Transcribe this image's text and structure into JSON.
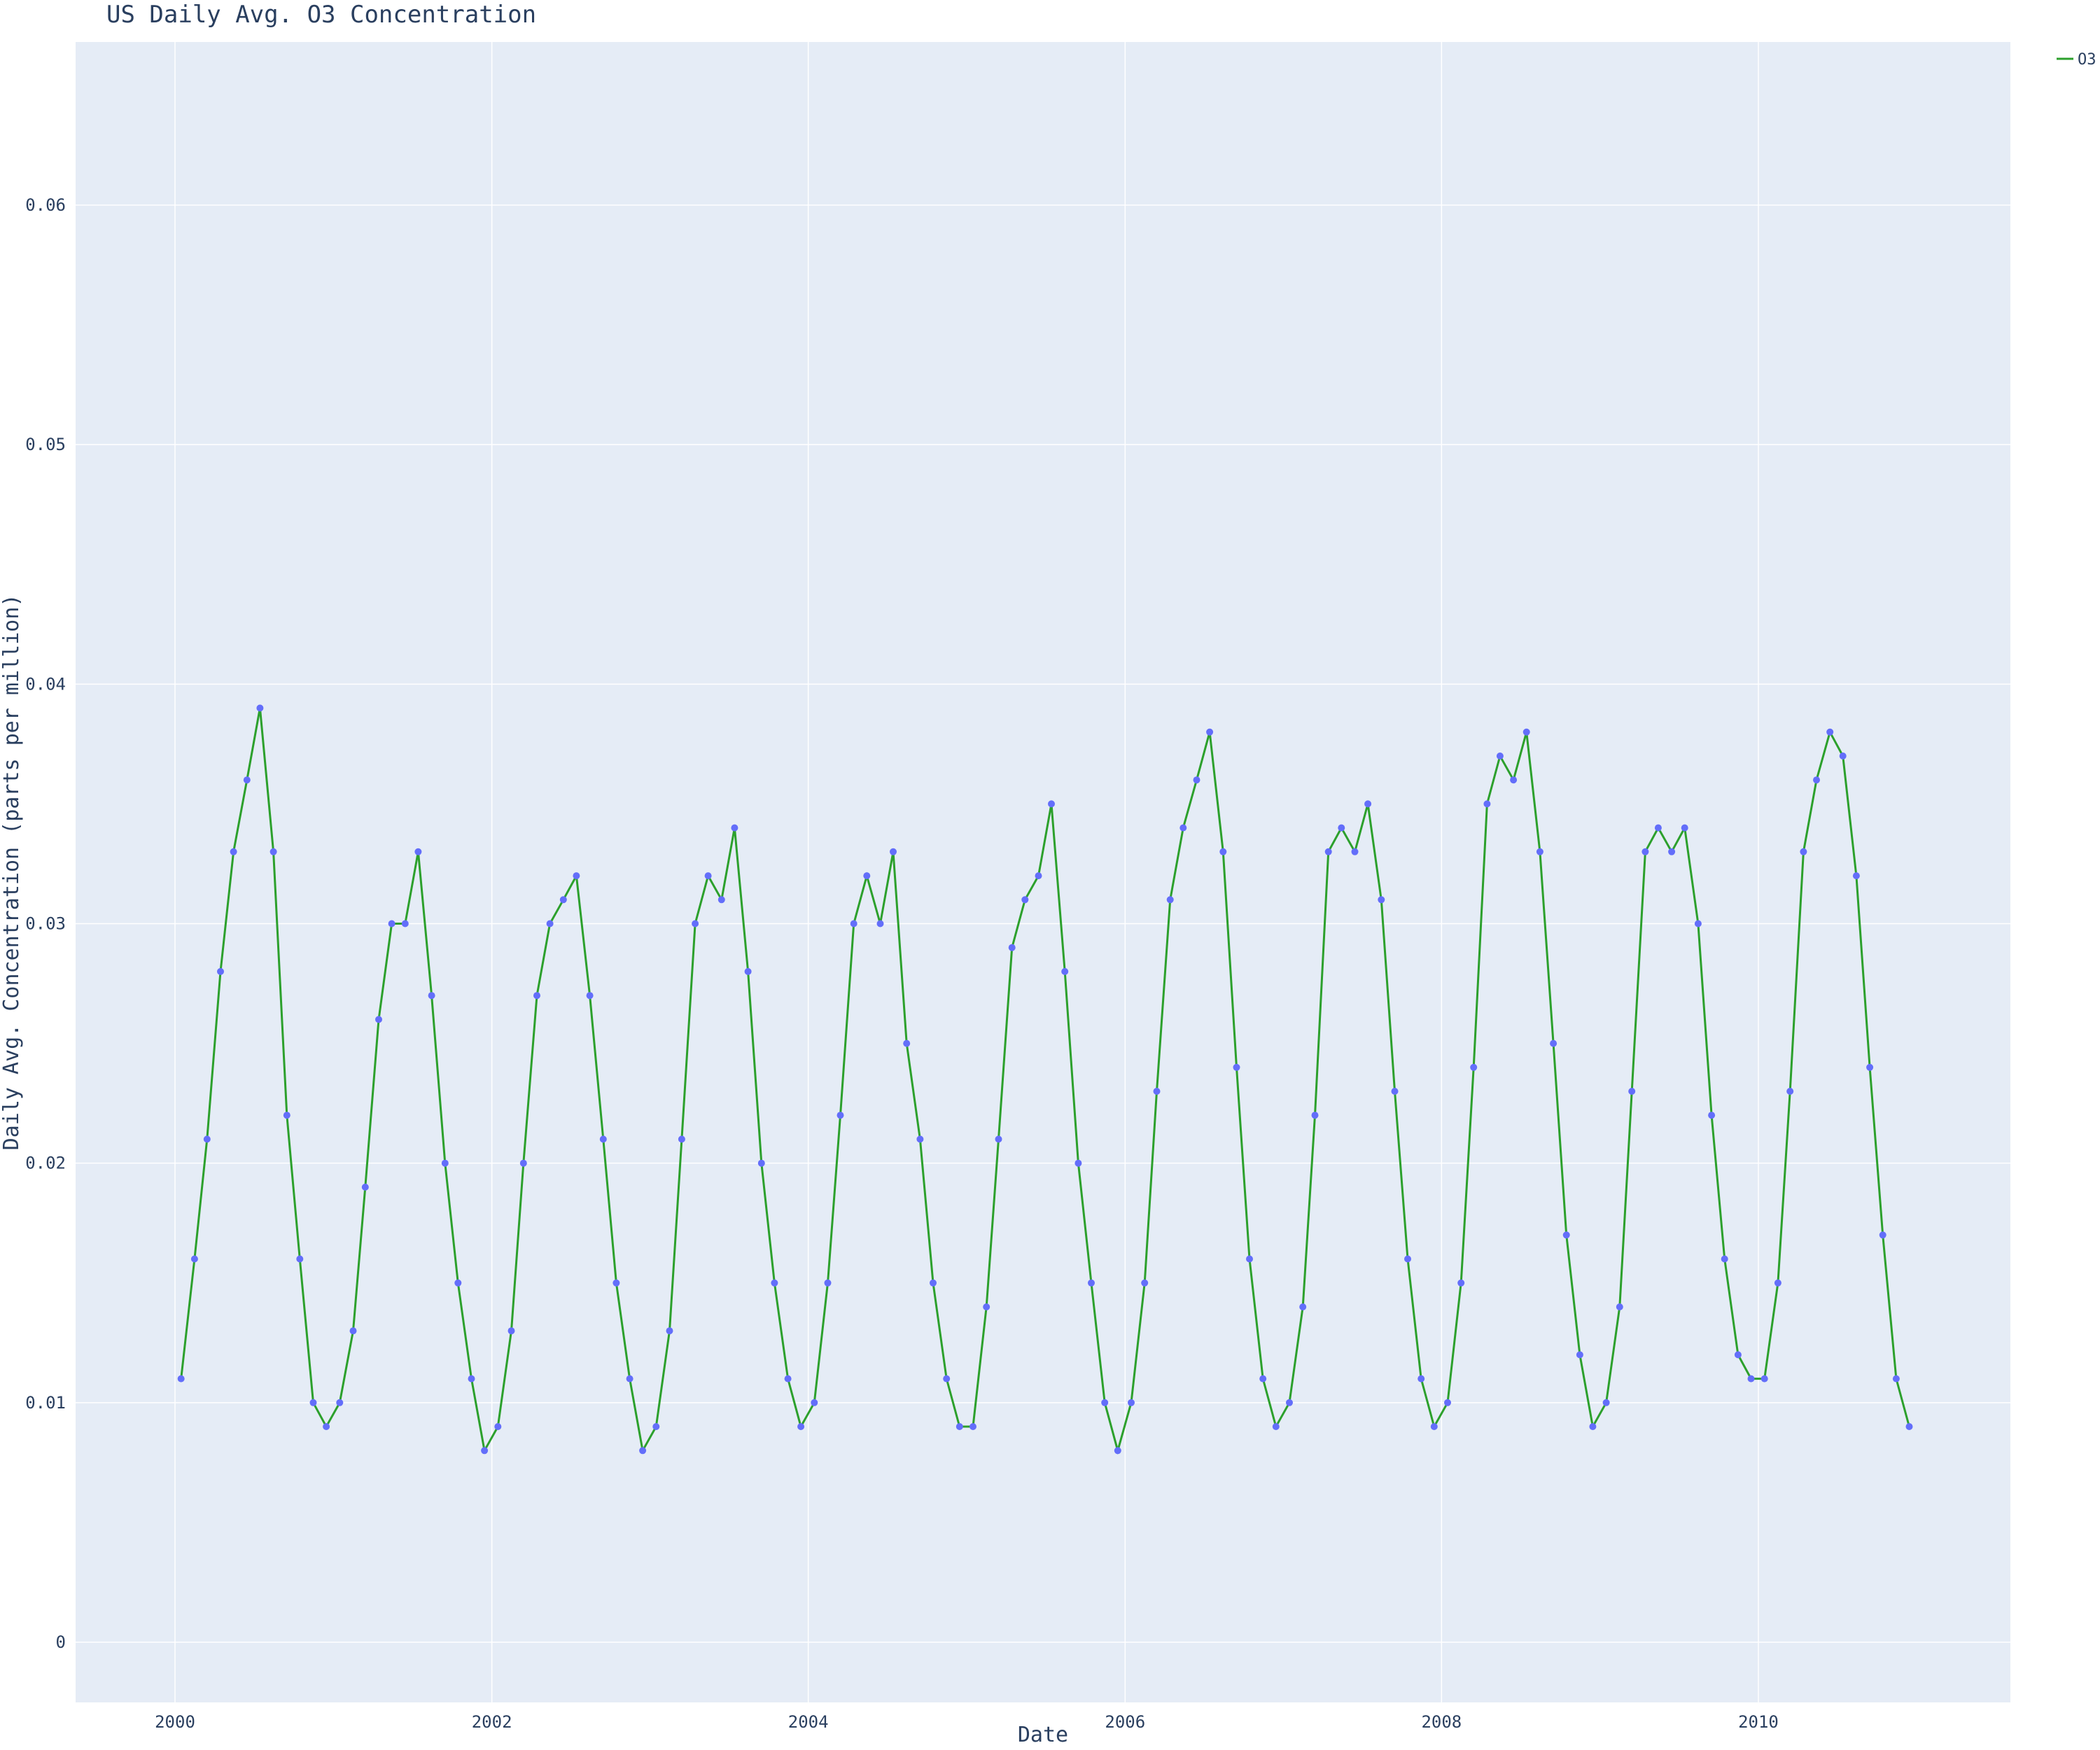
{
  "chart_data": {
    "type": "line",
    "mode": "lines+markers",
    "title": "US Daily Avg. O3 Concentration",
    "xlabel": "Date",
    "ylabel": "Daily Avg. Concentration (parts per million)",
    "x_range": [
      "2000-01-01",
      "2011-01-01"
    ],
    "ylim": [
      0,
      0.065
    ],
    "x_ticks": [
      "2000",
      "2002",
      "2004",
      "2006",
      "2008",
      "2010"
    ],
    "y_ticks": [
      "0",
      "0.01",
      "0.02",
      "0.03",
      "0.04",
      "0.05",
      "0.06"
    ],
    "grid": true,
    "legend_position": "top-right",
    "series": [
      {
        "name": "O3",
        "line_color": "#2ca02c",
        "marker_color": "#636efa",
        "x": [
          "2000-01-15",
          "2000-02-15",
          "2000-03-15",
          "2000-04-15",
          "2000-05-15",
          "2000-06-15",
          "2000-07-15",
          "2000-08-15",
          "2000-09-15",
          "2000-10-15",
          "2000-11-15",
          "2000-12-15",
          "2001-01-15",
          "2001-02-15",
          "2001-03-15",
          "2001-04-15",
          "2001-05-15",
          "2001-06-15",
          "2001-07-15",
          "2001-08-15",
          "2001-09-15",
          "2001-10-15",
          "2001-11-15",
          "2001-12-15",
          "2002-01-15",
          "2002-02-15",
          "2002-03-15",
          "2002-04-15",
          "2002-05-15",
          "2002-06-15",
          "2002-07-15",
          "2002-08-15",
          "2002-09-15",
          "2002-10-15",
          "2002-11-15",
          "2002-12-15",
          "2003-01-15",
          "2003-02-15",
          "2003-03-15",
          "2003-04-15",
          "2003-05-15",
          "2003-06-15",
          "2003-07-15",
          "2003-08-15",
          "2003-09-15",
          "2003-10-15",
          "2003-11-15",
          "2003-12-15",
          "2004-01-15",
          "2004-02-15",
          "2004-03-15",
          "2004-04-15",
          "2004-05-15",
          "2004-06-15",
          "2004-07-15",
          "2004-08-15",
          "2004-09-15",
          "2004-10-15",
          "2004-11-15",
          "2004-12-15",
          "2005-01-15",
          "2005-02-15",
          "2005-03-15",
          "2005-04-15",
          "2005-05-15",
          "2005-06-15",
          "2005-07-15",
          "2005-08-15",
          "2005-09-15",
          "2005-10-15",
          "2005-11-15",
          "2005-12-15",
          "2006-01-15",
          "2006-02-15",
          "2006-03-15",
          "2006-04-15",
          "2006-05-15",
          "2006-06-15",
          "2006-07-15",
          "2006-08-15",
          "2006-09-15",
          "2006-10-15",
          "2006-11-15",
          "2006-12-15",
          "2007-01-15",
          "2007-02-15",
          "2007-03-15",
          "2007-04-15",
          "2007-05-15",
          "2007-06-15",
          "2007-07-15",
          "2007-08-15",
          "2007-09-15",
          "2007-10-15",
          "2007-11-15",
          "2007-12-15",
          "2008-01-15",
          "2008-02-15",
          "2008-03-15",
          "2008-04-15",
          "2008-05-15",
          "2008-06-15",
          "2008-07-15",
          "2008-08-15",
          "2008-09-15",
          "2008-10-15",
          "2008-11-15",
          "2008-12-15",
          "2009-01-15",
          "2009-02-15",
          "2009-03-15",
          "2009-04-15",
          "2009-05-15",
          "2009-06-15",
          "2009-07-15",
          "2009-08-15",
          "2009-09-15",
          "2009-10-15",
          "2009-11-15",
          "2009-12-15",
          "2010-01-15",
          "2010-02-15",
          "2010-03-15",
          "2010-04-15",
          "2010-05-15",
          "2010-06-15",
          "2010-07-15",
          "2010-08-15",
          "2010-09-15",
          "2010-10-15",
          "2010-11-15",
          "2010-12-15"
        ],
        "y": [
          0.011,
          0.016,
          0.021,
          0.028,
          0.033,
          0.036,
          0.039,
          0.033,
          0.022,
          0.016,
          0.01,
          0.009,
          0.01,
          0.013,
          0.019,
          0.026,
          0.03,
          0.03,
          0.033,
          0.027,
          0.02,
          0.015,
          0.011,
          0.008,
          0.009,
          0.013,
          0.02,
          0.027,
          0.03,
          0.031,
          0.032,
          0.027,
          0.021,
          0.015,
          0.011,
          0.008,
          0.009,
          0.013,
          0.021,
          0.03,
          0.032,
          0.031,
          0.034,
          0.028,
          0.02,
          0.015,
          0.011,
          0.009,
          0.01,
          0.015,
          0.022,
          0.03,
          0.032,
          0.03,
          0.033,
          0.025,
          0.021,
          0.015,
          0.011,
          0.009,
          0.009,
          0.014,
          0.021,
          0.029,
          0.031,
          0.032,
          0.035,
          0.028,
          0.02,
          0.015,
          0.01,
          0.008,
          0.01,
          0.015,
          0.023,
          0.031,
          0.034,
          0.036,
          0.038,
          0.033,
          0.024,
          0.016,
          0.011,
          0.009,
          0.01,
          0.014,
          0.022,
          0.033,
          0.034,
          0.033,
          0.035,
          0.031,
          0.023,
          0.016,
          0.011,
          0.009,
          0.01,
          0.015,
          0.024,
          0.035,
          0.037,
          0.036,
          0.038,
          0.033,
          0.025,
          0.017,
          0.012,
          0.009,
          0.01,
          0.014,
          0.023,
          0.033,
          0.034,
          0.033,
          0.034,
          0.03,
          0.022,
          0.016,
          0.012,
          0.011,
          0.011,
          0.015,
          0.023,
          0.033,
          0.036,
          0.038,
          0.037,
          0.032,
          0.024,
          0.017,
          0.011,
          0.009
        ]
      }
    ]
  }
}
